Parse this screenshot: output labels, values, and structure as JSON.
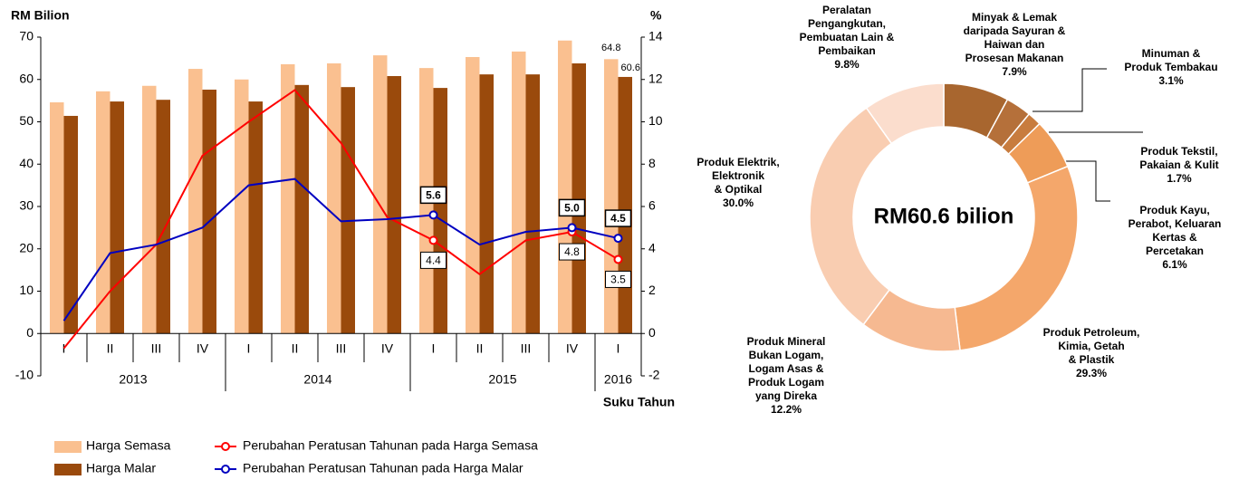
{
  "chart_data": [
    {
      "type": "bar",
      "y_label": "RM Bilion",
      "y2_label": "%",
      "x_label": "Suku Tahun",
      "categories": [
        "I",
        "II",
        "III",
        "IV",
        "I",
        "II",
        "III",
        "IV",
        "I",
        "II",
        "III",
        "IV",
        "I"
      ],
      "groups": [
        {
          "name": "2013",
          "span": [
            0,
            3
          ]
        },
        {
          "name": "2014",
          "span": [
            4,
            7
          ]
        },
        {
          "name": "2015",
          "span": [
            8,
            11
          ]
        },
        {
          "name": "2016",
          "span": [
            12,
            12
          ]
        }
      ],
      "ylim": [
        -10,
        70
      ],
      "yticks": [
        -10,
        0,
        10,
        20,
        30,
        40,
        50,
        60,
        70
      ],
      "y2lim": [
        -2,
        14
      ],
      "y2ticks": [
        -2,
        0,
        2,
        4,
        6,
        8,
        10,
        12,
        14
      ],
      "series": [
        {
          "name": "Harga Semasa",
          "type": "bar",
          "color": "#fac090",
          "values": [
            54.6,
            57.2,
            58.5,
            62.5,
            60.0,
            63.6,
            63.8,
            65.7,
            62.7,
            65.3,
            66.6,
            69.2,
            64.8
          ],
          "value_labels": [
            null,
            null,
            null,
            null,
            null,
            null,
            null,
            null,
            null,
            null,
            null,
            null,
            "64.8"
          ]
        },
        {
          "name": "Harga Malar",
          "type": "bar",
          "color": "#9a4a0c",
          "values": [
            51.4,
            54.8,
            55.2,
            57.6,
            54.8,
            58.7,
            58.2,
            60.8,
            58.0,
            61.2,
            61.2,
            63.8,
            60.6
          ],
          "value_labels": [
            null,
            null,
            null,
            null,
            null,
            null,
            null,
            null,
            null,
            null,
            null,
            null,
            "60.6"
          ]
        },
        {
          "name": "Perubahan Peratusan Tahunan pada Harga Semasa",
          "type": "line",
          "axis": "y2",
          "color": "#ff0000",
          "values": [
            -0.7,
            2.0,
            4.2,
            8.4,
            10.0,
            11.5,
            9.0,
            5.5,
            4.4,
            2.8,
            4.4,
            4.8,
            3.5
          ],
          "value_labels": [
            null,
            null,
            null,
            null,
            null,
            null,
            null,
            null,
            "4.4",
            null,
            null,
            "4.8",
            "3.5"
          ]
        },
        {
          "name": "Perubahan Peratusan Tahunan pada Harga Malar",
          "type": "line",
          "axis": "y2",
          "color": "#0000c0",
          "values": [
            0.6,
            3.8,
            4.2,
            5.0,
            7.0,
            7.3,
            5.3,
            5.4,
            5.6,
            4.2,
            4.8,
            5.0,
            4.5
          ],
          "value_labels": [
            null,
            null,
            null,
            null,
            null,
            null,
            null,
            null,
            "5.6",
            null,
            null,
            "5.0",
            "4.5"
          ]
        }
      ]
    },
    {
      "type": "pie",
      "donut": true,
      "center_label": "RM60.6 bilion",
      "categories": [
        "Minyak & Lemak\ndaripada Sayuran &\nHaiwan dan\nProsesan Makanan",
        "Minuman &\nProduk Tembakau",
        "Produk Tekstil,\nPakaian & Kulit",
        "Produk Kayu,\nPerabot, Keluaran\nKertas &\nPercetakan",
        "Produk Petroleum,\nKimia, Getah\n& Plastik",
        "Produk Mineral\nBukan Logam,\nLogam Asas &\nProduk Logam\nyang Direka",
        "Produk Elektrik,\nElektronik\n& Optikal",
        "Peralatan\nPengangkutan,\nPembuatan Lain &\nPembaikan"
      ],
      "values": [
        7.9,
        3.1,
        1.7,
        6.1,
        29.3,
        12.2,
        30.0,
        9.8
      ],
      "value_labels": [
        "7.9%",
        "3.1%",
        "1.7%",
        "6.1%",
        "29.3%",
        "12.2%",
        "30.0%",
        "9.8%"
      ],
      "colors": [
        "#a8662f",
        "#b5703a",
        "#c87c3e",
        "#ee9c58",
        "#f4a76b",
        "#f6b991",
        "#f9cdb1",
        "#fbddcd"
      ]
    }
  ]
}
